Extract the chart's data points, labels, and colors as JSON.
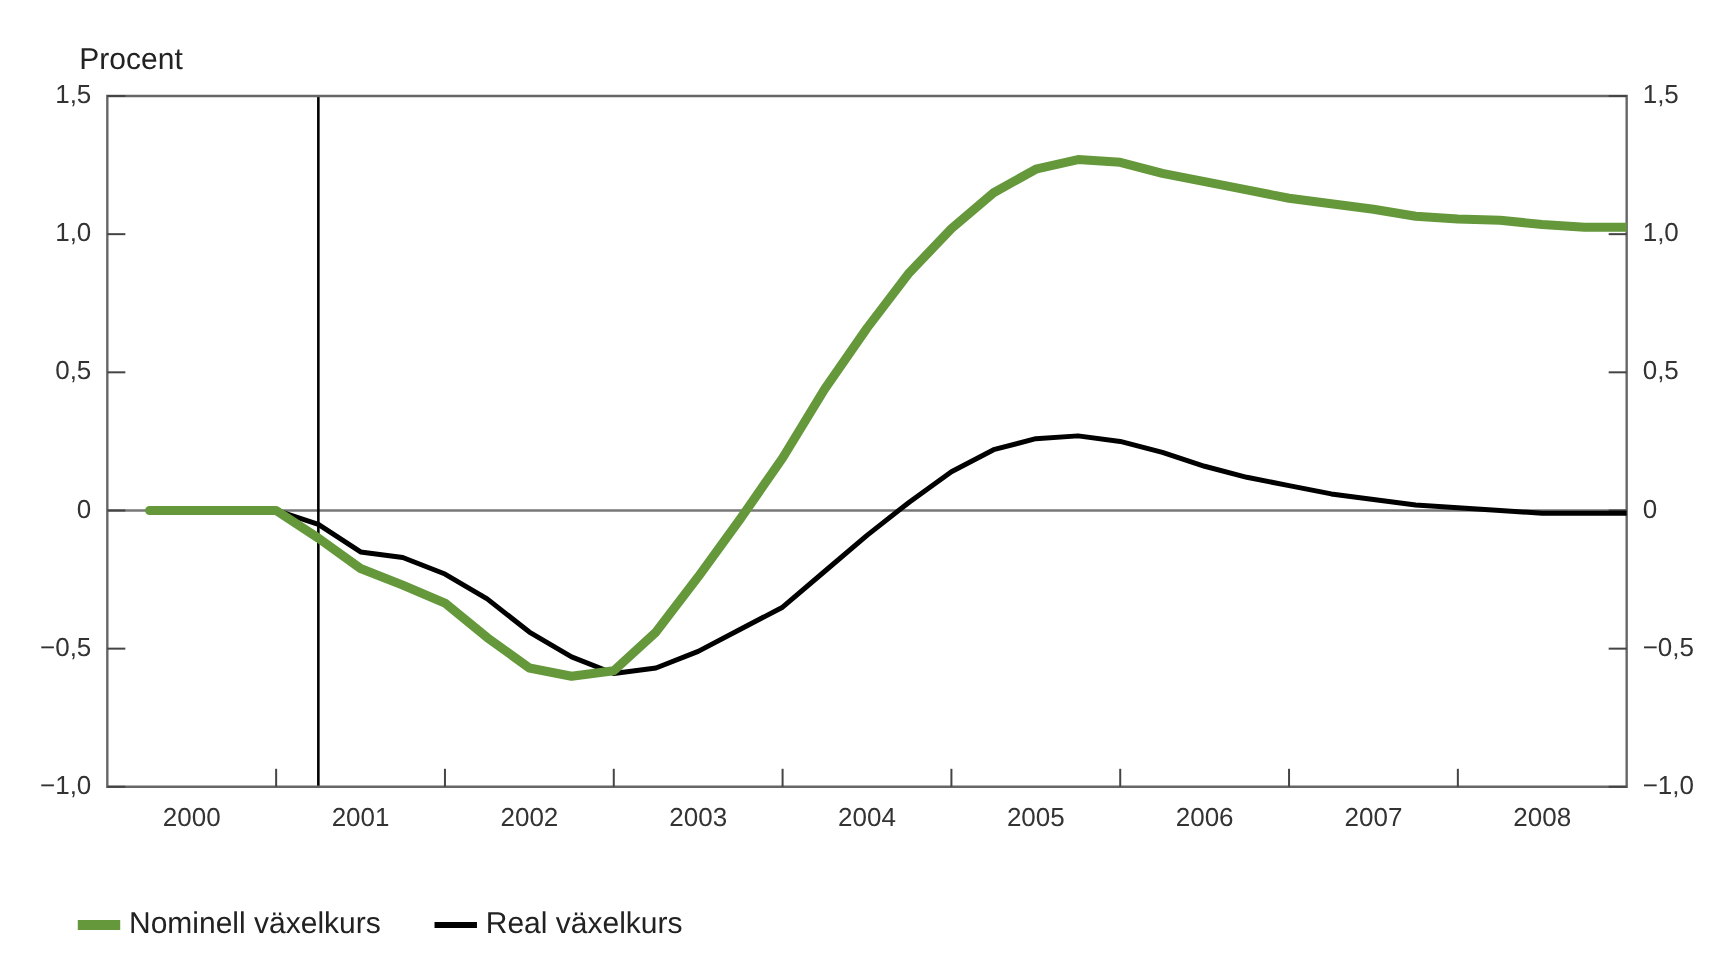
{
  "chart_data": {
    "type": "line",
    "ylabel": "Procent",
    "x": [
      2000.25,
      2000.5,
      2000.75,
      2001,
      2001.25,
      2001.5,
      2001.75,
      2002,
      2002.25,
      2002.5,
      2002.75,
      2003,
      2003.25,
      2003.5,
      2003.75,
      2004,
      2004.25,
      2004.5,
      2004.75,
      2005,
      2005.25,
      2005.5,
      2005.75,
      2006,
      2006.25,
      2006.5,
      2006.75,
      2007,
      2007.25,
      2007.5,
      2007.75,
      2008,
      2008.25,
      2008.5,
      2008.75,
      2009
    ],
    "series": [
      {
        "name": "Nominell växelkurs",
        "color": "#64983a",
        "values": [
          0,
          0,
          0,
          0,
          -0.1,
          -0.21,
          -0.27,
          -0.335,
          -0.46,
          -0.57,
          -0.6,
          -0.58,
          -0.44,
          -0.24,
          -0.03,
          0.19,
          0.44,
          0.66,
          0.86,
          1.02,
          1.15,
          1.235,
          1.27,
          1.26,
          1.22,
          1.19,
          1.16,
          1.13,
          1.11,
          1.09,
          1.065,
          1.055,
          1.05,
          1.035,
          1.025,
          1.025
        ]
      },
      {
        "name": "Real växelkurs",
        "color": "#000000",
        "values": [
          0,
          0,
          0,
          0,
          -0.05,
          -0.15,
          -0.17,
          -0.23,
          -0.32,
          -0.44,
          -0.53,
          -0.59,
          -0.57,
          -0.51,
          -0.43,
          -0.35,
          -0.22,
          -0.09,
          0.03,
          0.14,
          0.22,
          0.26,
          0.27,
          0.25,
          0.21,
          0.16,
          0.12,
          0.09,
          0.06,
          0.04,
          0.02,
          0.01,
          0,
          -0.01,
          -0.01,
          -0.01
        ]
      }
    ],
    "xlim": [
      2000,
      2009
    ],
    "xticks": [
      {
        "value": 2000.5,
        "label": "2000"
      },
      {
        "value": 2001,
        "label": null
      },
      {
        "value": 2001.5,
        "label": "2001"
      },
      {
        "value": 2002,
        "label": null
      },
      {
        "value": 2002.5,
        "label": "2002"
      },
      {
        "value": 2003,
        "label": null
      },
      {
        "value": 2003.5,
        "label": "2003"
      },
      {
        "value": 2004,
        "label": null
      },
      {
        "value": 2004.5,
        "label": "2004"
      },
      {
        "value": 2005,
        "label": null
      },
      {
        "value": 2005.5,
        "label": "2005"
      },
      {
        "value": 2006,
        "label": null
      },
      {
        "value": 2006.5,
        "label": "2006"
      },
      {
        "value": 2007,
        "label": null
      },
      {
        "value": 2007.5,
        "label": "2007"
      },
      {
        "value": 2008,
        "label": null
      },
      {
        "value": 2008.5,
        "label": "2008"
      }
    ],
    "ylim": [
      -1.0,
      1.5
    ],
    "yticks": [
      {
        "value": -1.0,
        "label": "−1,0"
      },
      {
        "value": -0.5,
        "label": "−0,5"
      },
      {
        "value": 0,
        "label": "0"
      },
      {
        "value": 0.5,
        "label": "0,5"
      },
      {
        "value": 1.0,
        "label": "1,0"
      },
      {
        "value": 1.5,
        "label": "1,5"
      }
    ],
    "y2lim": [
      -1.0,
      1.5
    ],
    "y2ticks": [
      {
        "value": -1.0,
        "label": "−1,0"
      },
      {
        "value": -0.5,
        "label": "−0,5"
      },
      {
        "value": 0,
        "label": "0"
      },
      {
        "value": 0.5,
        "label": "0,5"
      },
      {
        "value": 1.0,
        "label": "1,0"
      },
      {
        "value": 1.5,
        "label": "1,5"
      }
    ],
    "ref_lines": [
      {
        "axis": "y",
        "value": 0,
        "color": "#777777"
      },
      {
        "axis": "x",
        "value": 2001.25,
        "color": "#000000"
      }
    ],
    "grid": false,
    "legend": "bottom",
    "marker": "none",
    "line_style": "solid"
  }
}
